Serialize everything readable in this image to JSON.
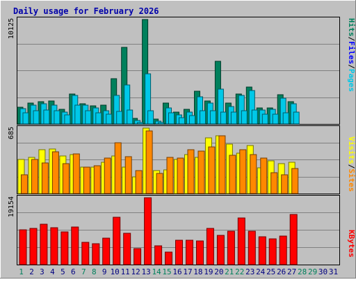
{
  "title": "Daily usage for February 2026",
  "colors": {
    "background": "#c0c0c0",
    "title": "#0000aa",
    "hits": "#00805c",
    "files": "#00c8e8",
    "pages": "#00c8e8",
    "visits": "#ffff00",
    "sites": "#ff8800",
    "kbytes": "#ff0000",
    "weekend_label": "#00805c",
    "weekday_label": "#000080",
    "future_label": "#000080"
  },
  "right_labels": {
    "top": [
      "Hits",
      "Files",
      "Pages"
    ],
    "middle": [
      "Visits",
      "Sites"
    ],
    "bottom": [
      "KBytes"
    ]
  },
  "chart_data": [
    {
      "type": "bar",
      "panel": "top",
      "ymax_label": "10125",
      "ylim": [
        0,
        10125
      ],
      "categories": [
        "1",
        "2",
        "3",
        "4",
        "5",
        "6",
        "7",
        "8",
        "9",
        "10",
        "11",
        "12",
        "13",
        "14",
        "15",
        "16",
        "17",
        "18",
        "19",
        "20",
        "21",
        "22",
        "23",
        "24",
        "25",
        "26",
        "27",
        "28",
        "29",
        "30",
        "31"
      ],
      "weekend_days": [
        "1",
        "7",
        "8",
        "14",
        "15",
        "21",
        "22",
        "28",
        "29"
      ],
      "series": [
        {
          "name": "Hits",
          "values": [
            1600,
            2050,
            2150,
            2200,
            1400,
            2900,
            1950,
            1750,
            1800,
            4400,
            7400,
            550,
            10125,
            450,
            2000,
            1150,
            1450,
            3150,
            2250,
            6100,
            2050,
            2900,
            3550,
            1550,
            1550,
            2850,
            2150,
            0,
            0,
            0,
            0
          ]
        },
        {
          "name": "Files",
          "values": [
            1500,
            1850,
            1950,
            1800,
            1150,
            2750,
            1800,
            1550,
            1300,
            2800,
            3800,
            350,
            4850,
            300,
            1550,
            850,
            1150,
            2650,
            2050,
            3400,
            1700,
            2750,
            3250,
            1350,
            1400,
            2500,
            1950,
            0,
            0,
            0,
            0
          ]
        },
        {
          "name": "Pages",
          "values": [
            1100,
            1300,
            1350,
            1250,
            850,
            1800,
            1250,
            1100,
            950,
            1200,
            1350,
            150,
            1300,
            150,
            1100,
            600,
            800,
            1250,
            1250,
            1150,
            1150,
            1250,
            1350,
            950,
            950,
            1100,
            1150,
            0,
            0,
            0,
            0
          ]
        }
      ]
    },
    {
      "type": "bar",
      "panel": "middle",
      "ymax_label": "685",
      "ylim": [
        0,
        685
      ],
      "categories": [
        "1",
        "2",
        "3",
        "4",
        "5",
        "6",
        "7",
        "8",
        "9",
        "10",
        "11",
        "12",
        "13",
        "14",
        "15",
        "16",
        "17",
        "18",
        "19",
        "20",
        "21",
        "22",
        "23",
        "24",
        "25",
        "26",
        "27",
        "28",
        "29",
        "30",
        "31"
      ],
      "series": [
        {
          "name": "Visits",
          "values": [
            360,
            380,
            460,
            470,
            395,
            405,
            275,
            280,
            330,
            395,
            280,
            175,
            685,
            240,
            245,
            360,
            410,
            380,
            585,
            605,
            520,
            425,
            505,
            270,
            340,
            310,
            330,
            0,
            0,
            0,
            0
          ]
        },
        {
          "name": "Sites",
          "values": [
            200,
            360,
            320,
            440,
            310,
            415,
            280,
            290,
            375,
            535,
            385,
            240,
            655,
            210,
            380,
            370,
            460,
            445,
            490,
            605,
            400,
            460,
            410,
            375,
            220,
            200,
            265,
            0,
            0,
            0,
            0
          ]
        }
      ]
    },
    {
      "type": "bar",
      "panel": "bottom",
      "ymax_label": "19154",
      "ylim": [
        0,
        19154
      ],
      "categories": [
        "1",
        "2",
        "3",
        "4",
        "5",
        "6",
        "7",
        "8",
        "9",
        "10",
        "11",
        "12",
        "13",
        "14",
        "15",
        "16",
        "17",
        "18",
        "19",
        "20",
        "21",
        "22",
        "23",
        "24",
        "25",
        "26",
        "27",
        "28",
        "29",
        "30",
        "31"
      ],
      "series": [
        {
          "name": "KBytes",
          "values": [
            9900,
            10350,
            11600,
            10600,
            9400,
            10850,
            6400,
            5900,
            7550,
            13500,
            8900,
            4650,
            19154,
            5350,
            3600,
            6900,
            6950,
            6750,
            10300,
            8450,
            9600,
            13300,
            9500,
            8050,
            7350,
            8150,
            14300,
            0,
            0,
            0,
            0
          ]
        }
      ]
    }
  ]
}
